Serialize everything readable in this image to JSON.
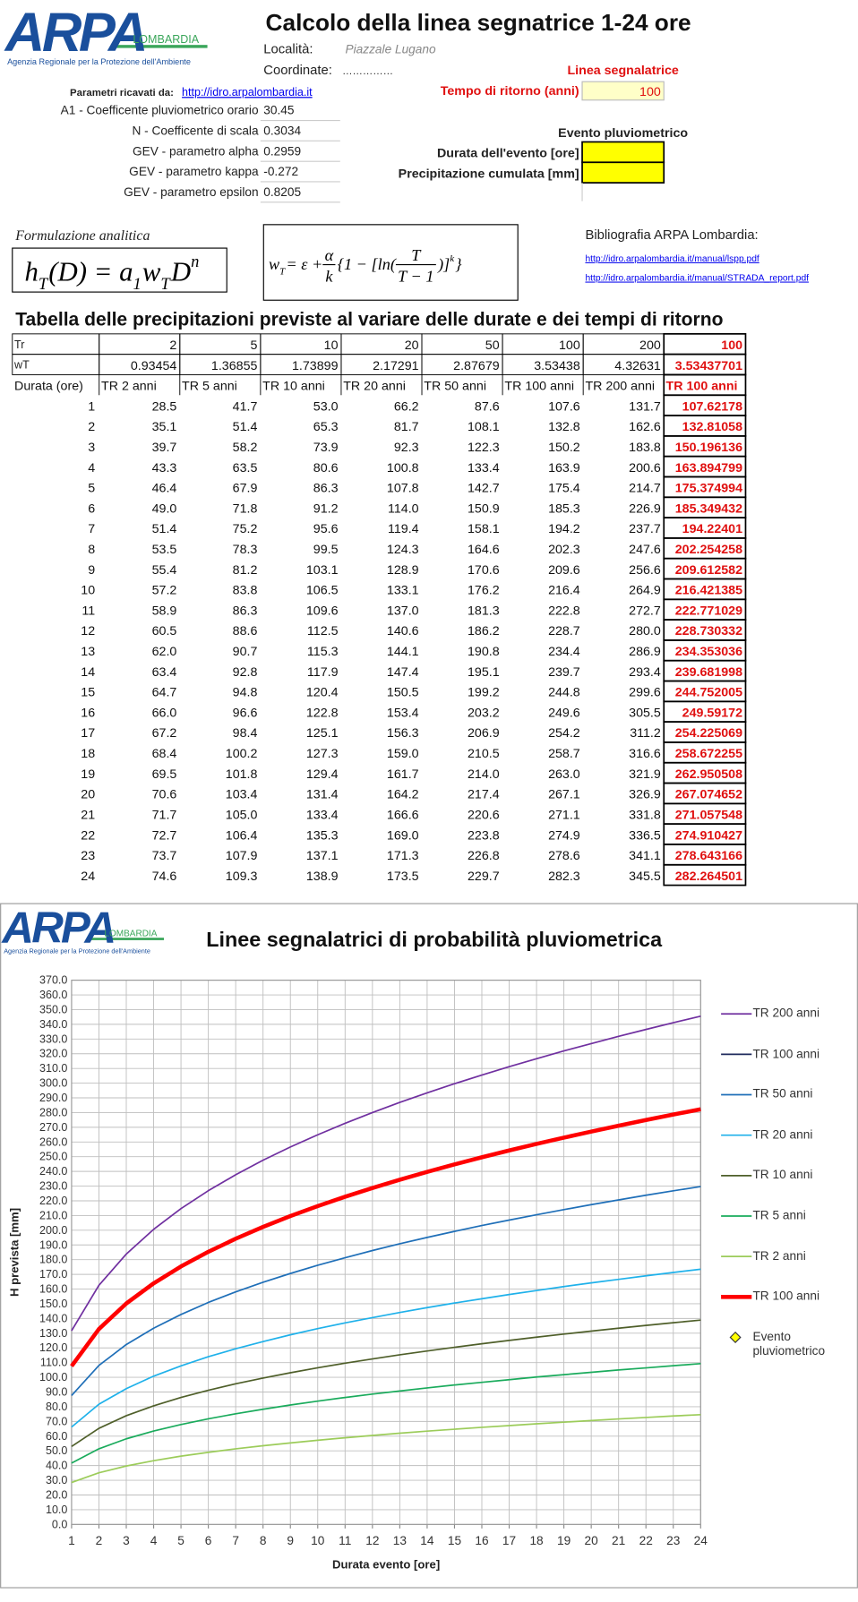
{
  "header": {
    "logo": {
      "text": "ARPA",
      "region": "LOMBARDIA",
      "agency": "Agenzia Regionale per la Protezione dell'Ambiente"
    },
    "title": "Calcolo della linea segnatrice 1-24 ore",
    "locality_label": "Località:",
    "locality": "Piazzale Lugano",
    "coords_label": "Coordinate:",
    "coords": "……………"
  },
  "return": {
    "heading": "Linea segnalatrice",
    "label": "Tempo di ritorno (anni)",
    "value": 100
  },
  "params": {
    "source_label": "Parametri ricavati da:",
    "source_link": "http://idro.arpalombardia.it",
    "items": [
      {
        "label": "A1 - Coefficente pluviometrico orario",
        "value": 30.45
      },
      {
        "label": "N - Coefficente di scala",
        "value": 0.3034
      },
      {
        "label": "GEV - parametro alpha",
        "value": 0.2959
      },
      {
        "label": "GEV - parametro kappa",
        "value": -0.272
      },
      {
        "label": "GEV - parametro epsilon",
        "value": 0.8205
      }
    ]
  },
  "event": {
    "heading": "Evento pluviometrico",
    "duration_label": "Durata dell'evento [ore]",
    "rain_label": "Precipitazione cumulata [mm]"
  },
  "formulas": {
    "label": "Formulazione analitica",
    "analytic": [
      "h",
      {
        "sub": "T"
      },
      "(D) = a",
      {
        "sub": "1"
      },
      "w",
      {
        "sub": "T"
      },
      "D",
      {
        "sup": "n"
      }
    ],
    "growth": [
      "w",
      {
        "sub": "T"
      },
      " = ε + ",
      {
        "num": "α",
        "den": "k"
      },
      "{1 − [ln(",
      {
        "num": "T",
        "den": "T − 1"
      },
      ")]",
      {
        "sup": "k"
      },
      "}"
    ]
  },
  "bibliography": {
    "heading": "Bibliografia ARPA Lombardia:",
    "links": [
      "http://idro.arpalombardia.it/manual/lspp.pdf",
      "http://idro.arpalombardia.it/manual/STRADA_report.pdf"
    ]
  },
  "table": {
    "title": "Tabella delle precipitazioni previste al variare delle durate e dei tempi di ritorno",
    "tr_row": {
      "label": "Tr",
      "values": [
        2,
        5,
        10,
        20,
        50,
        100,
        200,
        100
      ]
    },
    "wt_row": {
      "label": "wT",
      "values": [
        0.93454,
        1.36855,
        1.73899,
        2.17291,
        2.87679,
        3.53438,
        4.32631,
        3.53437701
      ]
    },
    "header": [
      "Durata (ore)",
      "TR 2 anni",
      "TR 5 anni",
      "TR 10 anni",
      "TR 20 anni",
      "TR 50 anni",
      "TR 100 anni",
      "TR 200 anni",
      "TR 100 anni"
    ],
    "rows": [
      [
        "1",
        "28.5",
        "41.7",
        "53.0",
        "66.2",
        "87.6",
        "107.6",
        "131.7",
        "107.62178"
      ],
      [
        "2",
        "35.1",
        "51.4",
        "65.3",
        "81.7",
        "108.1",
        "132.8",
        "162.6",
        "132.81058"
      ],
      [
        "3",
        "39.7",
        "58.2",
        "73.9",
        "92.3",
        "122.3",
        "150.2",
        "183.8",
        "150.196136"
      ],
      [
        "4",
        "43.3",
        "63.5",
        "80.6",
        "100.8",
        "133.4",
        "163.9",
        "200.6",
        "163.894799"
      ],
      [
        "5",
        "46.4",
        "67.9",
        "86.3",
        "107.8",
        "142.7",
        "175.4",
        "214.7",
        "175.374994"
      ],
      [
        "6",
        "49.0",
        "71.8",
        "91.2",
        "114.0",
        "150.9",
        "185.3",
        "226.9",
        "185.349432"
      ],
      [
        "7",
        "51.4",
        "75.2",
        "95.6",
        "119.4",
        "158.1",
        "194.2",
        "237.7",
        "194.22401"
      ],
      [
        "8",
        "53.5",
        "78.3",
        "99.5",
        "124.3",
        "164.6",
        "202.3",
        "247.6",
        "202.254258"
      ],
      [
        "9",
        "55.4",
        "81.2",
        "103.1",
        "128.9",
        "170.6",
        "209.6",
        "256.6",
        "209.612582"
      ],
      [
        "10",
        "57.2",
        "83.8",
        "106.5",
        "133.1",
        "176.2",
        "216.4",
        "264.9",
        "216.421385"
      ],
      [
        "11",
        "58.9",
        "86.3",
        "109.6",
        "137.0",
        "181.3",
        "222.8",
        "272.7",
        "222.771029"
      ],
      [
        "12",
        "60.5",
        "88.6",
        "112.5",
        "140.6",
        "186.2",
        "228.7",
        "280.0",
        "228.730332"
      ],
      [
        "13",
        "62.0",
        "90.7",
        "115.3",
        "144.1",
        "190.8",
        "234.4",
        "286.9",
        "234.353036"
      ],
      [
        "14",
        "63.4",
        "92.8",
        "117.9",
        "147.4",
        "195.1",
        "239.7",
        "293.4",
        "239.681998"
      ],
      [
        "15",
        "64.7",
        "94.8",
        "120.4",
        "150.5",
        "199.2",
        "244.8",
        "299.6",
        "244.752005"
      ],
      [
        "16",
        "66.0",
        "96.6",
        "122.8",
        "153.4",
        "203.2",
        "249.6",
        "305.5",
        "249.59172"
      ],
      [
        "17",
        "67.2",
        "98.4",
        "125.1",
        "156.3",
        "206.9",
        "254.2",
        "311.2",
        "254.225069"
      ],
      [
        "18",
        "68.4",
        "100.2",
        "127.3",
        "159.0",
        "210.5",
        "258.7",
        "316.6",
        "258.672255"
      ],
      [
        "19",
        "69.5",
        "101.8",
        "129.4",
        "161.7",
        "214.0",
        "263.0",
        "321.9",
        "262.950508"
      ],
      [
        "20",
        "70.6",
        "103.4",
        "131.4",
        "164.2",
        "217.4",
        "267.1",
        "326.9",
        "267.074652"
      ],
      [
        "21",
        "71.7",
        "105.0",
        "133.4",
        "166.6",
        "220.6",
        "271.1",
        "331.8",
        "271.057548"
      ],
      [
        "22",
        "72.7",
        "106.4",
        "135.3",
        "169.0",
        "223.8",
        "274.9",
        "336.5",
        "274.910427"
      ],
      [
        "23",
        "73.7",
        "107.9",
        "137.1",
        "171.3",
        "226.8",
        "278.6",
        "341.1",
        "278.643166"
      ],
      [
        "24",
        "74.6",
        "109.3",
        "138.9",
        "173.5",
        "229.7",
        "282.3",
        "345.5",
        "282.264501"
      ]
    ]
  },
  "chart_data": {
    "type": "line",
    "title": "Linee segnalatrici di probabilità pluviometrica",
    "x_label": "Durata evento [ore]",
    "y_label": "H prevista [mm]",
    "x": [
      1,
      2,
      3,
      4,
      5,
      6,
      7,
      8,
      9,
      10,
      11,
      12,
      13,
      14,
      15,
      16,
      17,
      18,
      19,
      20,
      21,
      22,
      23,
      24
    ],
    "xlim": [
      1,
      24
    ],
    "xticks": [
      1,
      2,
      3,
      4,
      5,
      6,
      7,
      8,
      9,
      10,
      11,
      12,
      13,
      14,
      15,
      16,
      17,
      18,
      19,
      20,
      21,
      22,
      23,
      24
    ],
    "ylim": [
      0,
      370
    ],
    "yticks": [
      {
        "value": 0,
        "label": "0.0"
      },
      {
        "value": 10,
        "label": "10.0"
      },
      {
        "value": 20,
        "label": "20.0"
      },
      {
        "value": 30,
        "label": "30.0"
      },
      {
        "value": 40,
        "label": "40.0"
      },
      {
        "value": 50,
        "label": "50.0"
      },
      {
        "value": 60,
        "label": "60.0"
      },
      {
        "value": 70,
        "label": "70.0"
      },
      {
        "value": 80,
        "label": "80.0"
      },
      {
        "value": 90,
        "label": "90.0"
      },
      {
        "value": 100,
        "label": "100.0"
      },
      {
        "value": 110,
        "label": "110.0"
      },
      {
        "value": 120,
        "label": "120.0"
      },
      {
        "value": 130,
        "label": "130.0"
      },
      {
        "value": 140,
        "label": "140.0"
      },
      {
        "value": 150,
        "label": "150.0"
      },
      {
        "value": 160,
        "label": "160.0"
      },
      {
        "value": 170,
        "label": "170.0"
      },
      {
        "value": 180,
        "label": "180.0"
      },
      {
        "value": 190,
        "label": "190.0"
      },
      {
        "value": 200,
        "label": "200.0"
      },
      {
        "value": 210,
        "label": "210.0"
      },
      {
        "value": 220,
        "label": "220.0"
      },
      {
        "value": 230,
        "label": "230.0"
      },
      {
        "value": 240,
        "label": "240.0"
      },
      {
        "value": 250,
        "label": "250.0"
      },
      {
        "value": 260,
        "label": "260.0"
      },
      {
        "value": 270,
        "label": "270.0"
      },
      {
        "value": 280,
        "label": "280.0"
      },
      {
        "value": 290,
        "label": "290.0"
      },
      {
        "value": 300,
        "label": "300.0"
      },
      {
        "value": 310,
        "label": "310.0"
      },
      {
        "value": 320,
        "label": "320.0"
      },
      {
        "value": 330,
        "label": "330.0"
      },
      {
        "value": 340,
        "label": "340.0"
      },
      {
        "value": 350,
        "label": "350.0"
      },
      {
        "value": 360,
        "label": "360.0"
      },
      {
        "value": 370,
        "label": "370.0"
      }
    ],
    "grid": true,
    "legend": "right",
    "series": [
      {
        "name": "TR 200 anni",
        "color": "#7030a0",
        "line_width": 1.5,
        "values": [
          131.7,
          162.6,
          183.8,
          200.6,
          214.7,
          226.9,
          237.7,
          247.6,
          256.6,
          264.9,
          272.7,
          280.0,
          286.9,
          293.4,
          299.6,
          305.5,
          311.2,
          316.6,
          321.9,
          326.9,
          331.8,
          336.5,
          341.1,
          345.5
        ]
      },
      {
        "name": "TR 100 anni",
        "color": "#1f2a5c",
        "line_width": 1.5,
        "values": [
          107.6,
          132.8,
          150.2,
          163.9,
          175.4,
          185.3,
          194.2,
          202.3,
          209.6,
          216.4,
          222.8,
          228.7,
          234.4,
          239.7,
          244.8,
          249.6,
          254.2,
          258.7,
          263.0,
          267.1,
          271.1,
          274.9,
          278.6,
          282.3
        ]
      },
      {
        "name": "TR 50 anni",
        "color": "#1f6fb8",
        "line_width": 1.5,
        "values": [
          87.6,
          108.1,
          122.3,
          133.4,
          142.7,
          150.9,
          158.1,
          164.6,
          170.6,
          176.2,
          181.3,
          186.2,
          190.8,
          195.1,
          199.2,
          203.2,
          206.9,
          210.5,
          214.0,
          217.4,
          220.6,
          223.8,
          226.8,
          229.7
        ]
      },
      {
        "name": "TR 20 anni",
        "color": "#1fb1ea",
        "line_width": 1.5,
        "values": [
          66.2,
          81.7,
          92.3,
          100.8,
          107.8,
          114.0,
          119.4,
          124.3,
          128.9,
          133.1,
          137.0,
          140.6,
          144.1,
          147.4,
          150.5,
          153.4,
          156.3,
          159.0,
          161.7,
          164.2,
          166.6,
          169.0,
          171.3,
          173.5
        ]
      },
      {
        "name": "TR 10 anni",
        "color": "#4f5f2a",
        "line_width": 1.5,
        "values": [
          53.0,
          65.3,
          73.9,
          80.6,
          86.3,
          91.2,
          95.6,
          99.5,
          103.1,
          106.5,
          109.6,
          112.5,
          115.3,
          117.9,
          120.4,
          122.8,
          125.1,
          127.3,
          129.4,
          131.4,
          133.4,
          135.3,
          137.1,
          138.9
        ]
      },
      {
        "name": "TR 5 anni",
        "color": "#1aab5c",
        "line_width": 1.5,
        "values": [
          41.7,
          51.4,
          58.2,
          63.5,
          67.9,
          71.8,
          75.2,
          78.3,
          81.2,
          83.8,
          86.3,
          88.6,
          90.7,
          92.8,
          94.8,
          96.6,
          98.4,
          100.2,
          101.8,
          103.4,
          105.0,
          106.4,
          107.9,
          109.3
        ]
      },
      {
        "name": "TR 2 anni",
        "color": "#9ccc5a",
        "line_width": 1.5,
        "values": [
          28.5,
          35.1,
          39.7,
          43.3,
          46.4,
          49.0,
          51.4,
          53.5,
          55.4,
          57.2,
          58.9,
          60.5,
          62.0,
          63.4,
          64.7,
          66.0,
          67.2,
          68.4,
          69.5,
          70.6,
          71.7,
          72.7,
          73.7,
          74.6
        ]
      },
      {
        "name": "TR 100 anni",
        "color": "#ff0000",
        "line_width": 4,
        "values": [
          107.62178,
          132.81058,
          150.196136,
          163.894799,
          175.374994,
          185.349432,
          194.22401,
          202.254258,
          209.612582,
          216.421385,
          222.771029,
          228.730332,
          234.353036,
          239.681998,
          244.752005,
          249.59172,
          254.225069,
          258.672255,
          262.950508,
          267.074652,
          271.057548,
          274.910427,
          278.643166,
          282.264501
        ]
      },
      {
        "name": "Evento pluviometrico",
        "color": "#ffff00",
        "marker": "diamond",
        "values": [
          null,
          null,
          null,
          null,
          null,
          null,
          null,
          null,
          null,
          null,
          null,
          null,
          null,
          null,
          null,
          null,
          null,
          null,
          null,
          null,
          null,
          null,
          null,
          null
        ]
      }
    ]
  }
}
